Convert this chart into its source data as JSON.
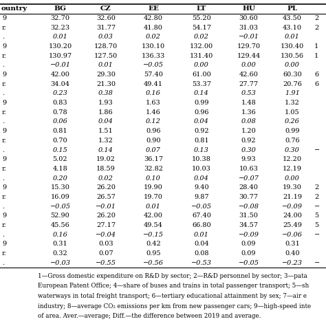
{
  "col_headers": [
    "ountry",
    "BG",
    "CZ",
    "EE",
    "LT",
    "HU",
    "PL",
    ""
  ],
  "row_label_prefixes": [
    "9",
    "r.",
    ".",
    "9",
    "r.",
    ".",
    "9",
    "r.",
    ".",
    "9",
    "r.",
    ".",
    "9",
    "r.",
    ".",
    "9",
    "r.",
    ".",
    "9",
    "r.",
    ".",
    "9",
    "r.",
    ".",
    "9",
    "r.",
    "."
  ],
  "data": [
    [
      "32.70",
      "32.60",
      "42.80",
      "55.20",
      "30.60",
      "43.50",
      "2"
    ],
    [
      "32.23",
      "31.77",
      "41.80",
      "54.17",
      "31.03",
      "43.10",
      "2"
    ],
    [
      "0.01",
      "0.03",
      "0.02",
      "0.02",
      "−0.01",
      "0.01",
      ""
    ],
    [
      "130.20",
      "128.70",
      "130.10",
      "132.00",
      "129.70",
      "130.40",
      "1"
    ],
    [
      "130.97",
      "127.50",
      "136.33",
      "131.40",
      "129.44",
      "130.56",
      "1"
    ],
    [
      "−0.01",
      "0.01",
      "−0.05",
      "0.00",
      "0.00",
      "0.00",
      ""
    ],
    [
      "42.00",
      "29.30",
      "57.40",
      "61.00",
      "42.60",
      "60.30",
      "6"
    ],
    [
      "34.04",
      "21.30",
      "49.41",
      "53.37",
      "27.77",
      "20.76",
      "6"
    ],
    [
      "0.23",
      "0.38",
      "0.16",
      "0.14",
      "0.53",
      "1.91",
      ""
    ],
    [
      "0.83",
      "1.93",
      "1.63",
      "0.99",
      "1.48",
      "1.32",
      ""
    ],
    [
      "0.78",
      "1.86",
      "1.46",
      "0.96",
      "1.36",
      "1.05",
      ""
    ],
    [
      "0.06",
      "0.04",
      "0.12",
      "0.04",
      "0.08",
      "0.26",
      ""
    ],
    [
      "0.81",
      "1.51",
      "0.96",
      "0.92",
      "1.20",
      "0.99",
      ""
    ],
    [
      "0.70",
      "1.32",
      "0.90",
      "0.81",
      "0.92",
      "0.76",
      ""
    ],
    [
      "0.15",
      "0.14",
      "0.07",
      "0.13",
      "0.30",
      "0.30",
      "−"
    ],
    [
      "5.02",
      "19.02",
      "36.17",
      "10.38",
      "9.93",
      "12.20",
      ""
    ],
    [
      "4.18",
      "18.59",
      "32.82",
      "10.03",
      "10.63",
      "12.19",
      ""
    ],
    [
      "0.20",
      "0.02",
      "0.10",
      "0.04",
      "−0.07",
      "0.00",
      ""
    ],
    [
      "15.30",
      "26.20",
      "19.90",
      "9.40",
      "28.40",
      "19.30",
      "2"
    ],
    [
      "16.09",
      "26.57",
      "19.70",
      "9.87",
      "30.77",
      "21.19",
      "2"
    ],
    [
      "−0.05",
      "−0.01",
      "0.01",
      "−0.05",
      "−0.08",
      "−0.09",
      "−"
    ],
    [
      "52.90",
      "26.20",
      "42.00",
      "67.40",
      "31.50",
      "24.00",
      "5"
    ],
    [
      "45.56",
      "27.17",
      "49.54",
      "66.80",
      "34.57",
      "25.49",
      "5"
    ],
    [
      "0.16",
      "−0.04",
      "−0.15",
      "0.01",
      "−0.09",
      "−0.06",
      "−"
    ],
    [
      "0.31",
      "0.03",
      "0.42",
      "0.04",
      "0.09",
      "0.31",
      ""
    ],
    [
      "0.32",
      "0.07",
      "0.95",
      "0.08",
      "0.09",
      "0.40",
      ""
    ],
    [
      "−0.03",
      "−0.55",
      "−0.56",
      "−0.53",
      "−0.05",
      "−0.23",
      "−"
    ]
  ],
  "italic_rows": [
    2,
    5,
    8,
    11,
    14,
    17,
    20,
    23,
    26
  ],
  "footnote_lines": [
    "1—Gross domestic expenditure on R&D by sector; 2—R&D personnel by sector; 3—pata",
    "European Patent Office; 4—share of buses and trains in total passenger transport; 5—sh",
    "waterways in total freight transport; 6—tertiary educational attainment by sex; 7—air e",
    "industry; 8—average CO₂ emissions per km from new passenger cars; 9—high-speed inte",
    "of area. Aver.—average; Diff.—the difference between 2019 and average."
  ],
  "background_color": "#ffffff",
  "text_color": "#000000",
  "font_size": 7.0,
  "footnote_font_size": 6.3,
  "header_font_size": 7.5
}
